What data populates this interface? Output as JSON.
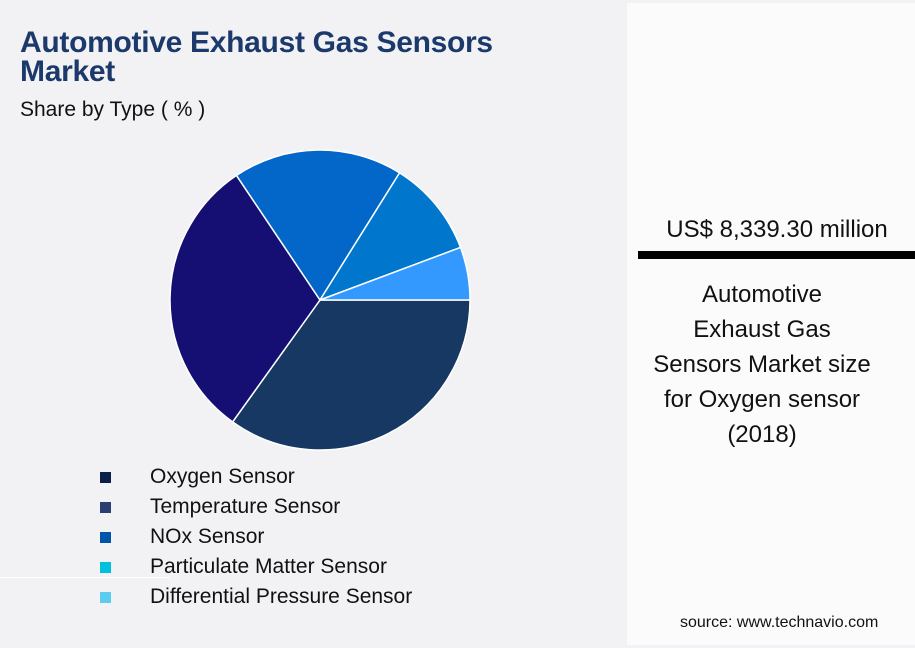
{
  "header": {
    "title_line1": "Automotive Exhaust Gas Sensors",
    "title_line2": "Market",
    "subtitle": "Share by Type ( % )"
  },
  "legend": [
    {
      "label": "Oxygen Sensor",
      "color": "#0b1f4b"
    },
    {
      "label": "Temperature Sensor",
      "color": "#2b3f73"
    },
    {
      "label": "NOx Sensor",
      "color": "#0055a8"
    },
    {
      "label": "Particulate Matter Sensor",
      "color": "#00c0e0"
    },
    {
      "label": "Differential Pressure Sensor",
      "color": "#5bcdee"
    }
  ],
  "panel": {
    "value": "US$ 8,339.30 million",
    "description_lines": [
      "Automotive",
      "Exhaust Gas",
      "Sensors Market size",
      "for Oxygen sensor",
      "(2018)"
    ],
    "source": "source: www.technavio.com"
  },
  "chart_data": {
    "type": "pie",
    "title": "Automotive Exhaust Gas Sensors Market",
    "subtitle": "Share by Type ( % )",
    "categories": [
      "Oxygen Sensor",
      "Temperature Sensor",
      "NOx Sensor",
      "Particulate Matter Sensor",
      "Differential Pressure Sensor"
    ],
    "values": [
      34.9,
      30.7,
      18.3,
      10.4,
      5.7
    ],
    "slice_colors": [
      "#173862",
      "#160f73",
      "#0366c9",
      "#0077cc",
      "#3399ff"
    ],
    "start_angle_deg": 0,
    "direction": "clockwise",
    "legend_position": "bottom",
    "data_labels": false
  }
}
